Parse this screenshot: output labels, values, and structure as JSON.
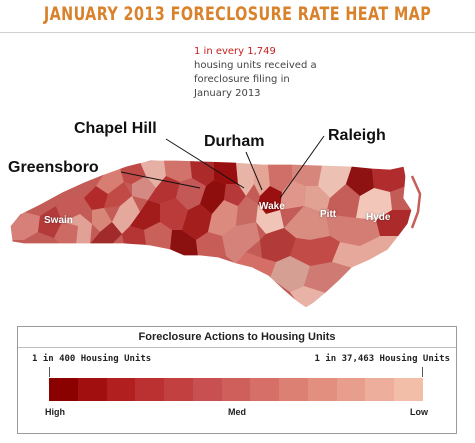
{
  "title": "JANUARY 2013 FORECLOSURE RATE HEAT MAP",
  "stat": {
    "highlight": "1 in every 1,749",
    "line1": "housing units received a",
    "line2": "foreclosure filing in",
    "line3": "January 2013"
  },
  "cities": {
    "chapel_hill": "Chapel Hill",
    "durham": "Durham",
    "raleigh": "Raleigh",
    "greensboro": "Greensboro"
  },
  "counties": {
    "swain": "Swain",
    "wake": "Wake",
    "pitt": "Pitt",
    "hyde": "Hyde"
  },
  "legend": {
    "title": "Foreclosure Actions to Housing Units",
    "high_end": "1 in 400 Housing Units",
    "low_end": "1 in 37,463 Housing Units",
    "high": "High",
    "med": "Med",
    "low": "Low",
    "colors": [
      "#8b0000",
      "#a10f0f",
      "#b11f1f",
      "#bb3030",
      "#c24040",
      "#c85050",
      "#cf5f5a",
      "#d66f68",
      "#dc8073",
      "#e28f80",
      "#e79e8c",
      "#eeae9c",
      "#f3bea8"
    ]
  }
}
